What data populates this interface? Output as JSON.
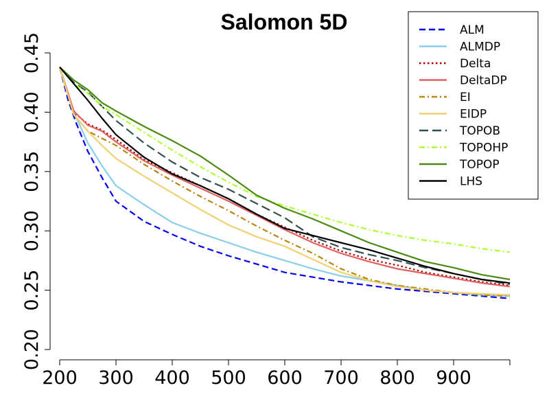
{
  "chart_data": {
    "type": "line",
    "title": "Salomon 5D",
    "xlabel": "",
    "ylabel": "",
    "xlim": [
      200,
      1000
    ],
    "ylim": [
      0.2,
      0.45
    ],
    "x_ticks": [
      200,
      300,
      400,
      500,
      600,
      700,
      800,
      900
    ],
    "x_tick_labels": [
      "200",
      "300",
      "400",
      "500",
      "600",
      "700",
      "800",
      "900"
    ],
    "y_ticks": [
      0.2,
      0.25,
      0.3,
      0.35,
      0.4,
      0.45
    ],
    "y_tick_labels": [
      "0.20",
      "0.25",
      "0.30",
      "0.35",
      "0.40",
      "0.45"
    ],
    "grid": false,
    "legend_position": "top-right",
    "series": [
      {
        "name": "ALM",
        "color": "#0000ee",
        "dash": "dashed",
        "x": [
          200,
          215,
          230,
          250,
          275,
          300,
          350,
          400,
          450,
          500,
          550,
          600,
          650,
          700,
          750,
          800,
          850,
          900,
          950,
          1000
        ],
        "y": [
          0.438,
          0.41,
          0.39,
          0.367,
          0.345,
          0.325,
          0.308,
          0.297,
          0.287,
          0.279,
          0.272,
          0.265,
          0.261,
          0.257,
          0.254,
          0.251,
          0.249,
          0.247,
          0.245,
          0.243
        ]
      },
      {
        "name": "ALMDP",
        "color": "#87ceeb",
        "dash": "solid",
        "x": [
          200,
          215,
          230,
          250,
          275,
          300,
          350,
          400,
          450,
          500,
          550,
          600,
          650,
          700,
          750,
          800,
          850,
          900,
          950,
          1000
        ],
        "y": [
          0.438,
          0.414,
          0.395,
          0.374,
          0.355,
          0.338,
          0.322,
          0.307,
          0.298,
          0.29,
          0.282,
          0.275,
          0.268,
          0.262,
          0.258,
          0.254,
          0.25,
          0.248,
          0.246,
          0.245
        ]
      },
      {
        "name": "Delta",
        "color": "#aa0000",
        "dash": "dotted",
        "x": [
          200,
          225,
          250,
          275,
          300,
          350,
          400,
          450,
          500,
          550,
          600,
          650,
          700,
          750,
          800,
          850,
          900,
          950,
          1000
        ],
        "y": [
          0.438,
          0.4,
          0.39,
          0.385,
          0.377,
          0.36,
          0.349,
          0.338,
          0.327,
          0.314,
          0.303,
          0.292,
          0.283,
          0.276,
          0.271,
          0.265,
          0.261,
          0.257,
          0.254
        ]
      },
      {
        "name": "DeltaDP",
        "color": "#e06060",
        "dash": "solid",
        "x": [
          200,
          225,
          250,
          275,
          300,
          350,
          400,
          450,
          500,
          550,
          600,
          650,
          700,
          750,
          800,
          850,
          900,
          950,
          1000
        ],
        "y": [
          0.438,
          0.401,
          0.389,
          0.384,
          0.375,
          0.359,
          0.347,
          0.336,
          0.325,
          0.313,
          0.301,
          0.29,
          0.281,
          0.274,
          0.268,
          0.264,
          0.26,
          0.256,
          0.253
        ]
      },
      {
        "name": "EI",
        "color": "#b8860b",
        "dash": "dashdot",
        "x": [
          200,
          225,
          250,
          275,
          300,
          350,
          400,
          450,
          500,
          550,
          600,
          650,
          700,
          750,
          800,
          850,
          900,
          950,
          1000
        ],
        "y": [
          0.438,
          0.398,
          0.384,
          0.378,
          0.372,
          0.356,
          0.342,
          0.329,
          0.317,
          0.304,
          0.292,
          0.281,
          0.268,
          0.259,
          0.254,
          0.251,
          0.248,
          0.246,
          0.245
        ]
      },
      {
        "name": "EIDP",
        "color": "#f0d070",
        "dash": "solid",
        "x": [
          200,
          225,
          250,
          275,
          300,
          350,
          400,
          450,
          500,
          550,
          600,
          650,
          700,
          750,
          800,
          850,
          900,
          950,
          1000
        ],
        "y": [
          0.438,
          0.398,
          0.384,
          0.372,
          0.361,
          0.346,
          0.332,
          0.318,
          0.305,
          0.295,
          0.287,
          0.276,
          0.265,
          0.258,
          0.253,
          0.25,
          0.248,
          0.247,
          0.246
        ]
      },
      {
        "name": "TOPOB",
        "color": "#2f4f4f",
        "dash": "longdash",
        "x": [
          200,
          225,
          250,
          275,
          300,
          350,
          400,
          450,
          500,
          550,
          600,
          650,
          700,
          750,
          800,
          850,
          900,
          950,
          1000
        ],
        "y": [
          0.438,
          0.425,
          0.417,
          0.405,
          0.393,
          0.374,
          0.358,
          0.345,
          0.335,
          0.323,
          0.311,
          0.295,
          0.286,
          0.28,
          0.275,
          0.269,
          0.264,
          0.259,
          0.255
        ]
      },
      {
        "name": "TOPOHP",
        "color": "#adff2f",
        "dash": "dashdot",
        "x": [
          200,
          225,
          250,
          275,
          300,
          350,
          400,
          450,
          500,
          550,
          600,
          650,
          700,
          750,
          800,
          850,
          900,
          950,
          1000
        ],
        "y": [
          0.438,
          0.424,
          0.416,
          0.405,
          0.398,
          0.383,
          0.368,
          0.354,
          0.341,
          0.329,
          0.321,
          0.314,
          0.307,
          0.301,
          0.296,
          0.292,
          0.289,
          0.285,
          0.282
        ]
      },
      {
        "name": "TOPOP",
        "color": "#4a8a10",
        "dash": "solid",
        "x": [
          200,
          225,
          250,
          275,
          300,
          350,
          400,
          450,
          500,
          550,
          600,
          650,
          700,
          750,
          800,
          850,
          900,
          950,
          1000
        ],
        "y": [
          0.438,
          0.427,
          0.419,
          0.408,
          0.401,
          0.388,
          0.376,
          0.363,
          0.347,
          0.33,
          0.319,
          0.31,
          0.3,
          0.29,
          0.282,
          0.274,
          0.269,
          0.263,
          0.259
        ]
      },
      {
        "name": "LHS",
        "color": "#000000",
        "dash": "solid",
        "x": [
          200,
          225,
          250,
          275,
          300,
          350,
          400,
          450,
          500,
          550,
          600,
          650,
          700,
          750,
          800,
          850,
          900,
          950,
          1000
        ],
        "y": [
          0.438,
          0.424,
          0.41,
          0.395,
          0.381,
          0.362,
          0.348,
          0.338,
          0.327,
          0.314,
          0.302,
          0.296,
          0.29,
          0.284,
          0.277,
          0.27,
          0.264,
          0.259,
          0.256
        ]
      }
    ]
  }
}
